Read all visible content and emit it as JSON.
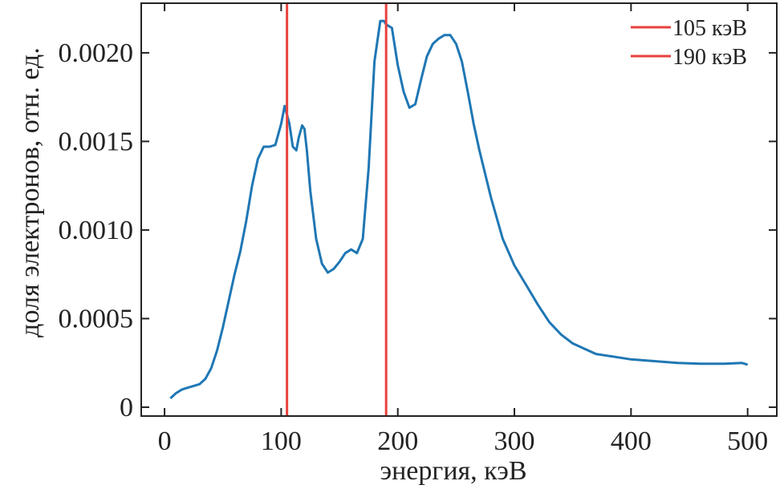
{
  "chart_data": {
    "type": "line",
    "xlabel": "энергия, кэВ",
    "ylabel": "доля электронов, отн. ед.",
    "xlim": [
      -20,
      525
    ],
    "ylim": [
      -5e-05,
      0.00228
    ],
    "x_ticks": [
      0,
      100,
      200,
      300,
      400,
      500
    ],
    "x_tick_labels": [
      "0",
      "100",
      "200",
      "300",
      "400",
      "500"
    ],
    "y_ticks": [
      0,
      0.0005,
      0.001,
      0.0015,
      0.002
    ],
    "y_tick_labels": [
      "0",
      "0.0005",
      "0.0010",
      "0.0015",
      "0.0020"
    ],
    "grid": false,
    "legend_position": "top-right",
    "series": [
      {
        "color": "#1f77b4",
        "x": [
          5,
          10,
          15,
          20,
          25,
          30,
          35,
          40,
          45,
          50,
          55,
          60,
          65,
          70,
          75,
          80,
          85,
          90,
          95,
          100,
          103,
          107,
          110,
          113,
          115,
          118,
          120,
          122,
          125,
          130,
          135,
          140,
          145,
          150,
          155,
          160,
          165,
          170,
          175,
          180,
          185,
          188,
          190,
          195,
          200,
          205,
          210,
          215,
          220,
          225,
          230,
          235,
          240,
          245,
          250,
          255,
          260,
          265,
          270,
          280,
          290,
          300,
          310,
          320,
          330,
          340,
          350,
          360,
          370,
          380,
          400,
          420,
          440,
          460,
          480,
          495,
          500
        ],
        "values": [
          5e-05,
          8e-05,
          0.0001,
          0.00011,
          0.00012,
          0.00013,
          0.00016,
          0.00022,
          0.00032,
          0.00045,
          0.0006,
          0.00075,
          0.00088,
          0.00105,
          0.00125,
          0.0014,
          0.00147,
          0.00147,
          0.00148,
          0.0016,
          0.0017,
          0.0016,
          0.00147,
          0.00145,
          0.00152,
          0.00159,
          0.00157,
          0.00145,
          0.00122,
          0.00095,
          0.00081,
          0.00076,
          0.00078,
          0.00082,
          0.00087,
          0.00089,
          0.00087,
          0.00095,
          0.00135,
          0.00195,
          0.00218,
          0.00218,
          0.00216,
          0.00214,
          0.00193,
          0.00178,
          0.00169,
          0.00171,
          0.00185,
          0.00198,
          0.00205,
          0.00208,
          0.0021,
          0.0021,
          0.00205,
          0.00195,
          0.00178,
          0.0016,
          0.00145,
          0.00118,
          0.00095,
          0.0008,
          0.00069,
          0.00058,
          0.00048,
          0.00041,
          0.00036,
          0.00033,
          0.0003,
          0.00029,
          0.00027,
          0.00026,
          0.00025,
          0.000245,
          0.000245,
          0.00025,
          0.00024
        ]
      }
    ],
    "vlines": [
      {
        "name": "105 кэВ",
        "x": 105,
        "color": "#e8413c"
      },
      {
        "name": "190 кэВ",
        "x": 190,
        "color": "#e8413c"
      }
    ]
  }
}
